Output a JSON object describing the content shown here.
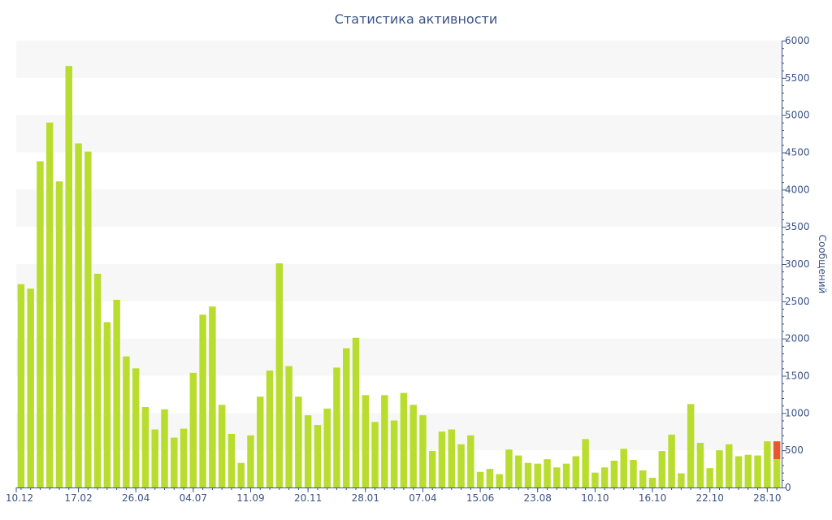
{
  "chart_data": {
    "type": "bar",
    "title": "Статистика активности",
    "ylabel": "Сообщений",
    "ylim": [
      0,
      6000
    ],
    "y_ticks": [
      0,
      500,
      1000,
      1500,
      2000,
      2500,
      3000,
      3500,
      4000,
      4500,
      5000,
      5500,
      6000
    ],
    "x_tick_labels": [
      {
        "index": 0,
        "label": "10.12"
      },
      {
        "index": 6,
        "label": "17.02"
      },
      {
        "index": 12,
        "label": "26.04"
      },
      {
        "index": 18,
        "label": "04.07"
      },
      {
        "index": 24,
        "label": "11.09"
      },
      {
        "index": 30,
        "label": "20.11"
      },
      {
        "index": 36,
        "label": "28.01"
      },
      {
        "index": 42,
        "label": "07.04"
      },
      {
        "index": 48,
        "label": "15.06"
      },
      {
        "index": 54,
        "label": "23.08"
      },
      {
        "index": 60,
        "label": "10.10"
      },
      {
        "index": 66,
        "label": "16.10"
      },
      {
        "index": 72,
        "label": "22.10"
      },
      {
        "index": 78,
        "label": "28.10"
      }
    ],
    "colors": {
      "primary": "#b9dd2e",
      "highlight": "#e8572c"
    },
    "series": [
      {
        "values": [
          2730,
          2670,
          4380,
          4900,
          4110,
          5660,
          4620,
          4510,
          2870,
          2220,
          2520,
          1760,
          1600,
          1080,
          780,
          1050,
          670,
          790,
          1540,
          2320,
          2430,
          1110,
          720,
          330,
          700,
          1220,
          1570,
          3010,
          1630,
          1220,
          970,
          840,
          1060,
          1610,
          1870,
          2010,
          1240,
          880,
          1240,
          900,
          1270,
          1110,
          970,
          490,
          750,
          780,
          580,
          700,
          210,
          250,
          180,
          510,
          430,
          330,
          320,
          380,
          270,
          320,
          420,
          650,
          200,
          270,
          360,
          520,
          370,
          230,
          130,
          490,
          710,
          190,
          1120,
          600,
          260,
          500,
          580,
          420,
          440,
          430,
          620,
          380
        ]
      },
      {
        "values": [
          0,
          0,
          0,
          0,
          0,
          0,
          0,
          0,
          0,
          0,
          0,
          0,
          0,
          0,
          0,
          0,
          0,
          0,
          0,
          0,
          0,
          0,
          0,
          0,
          0,
          0,
          0,
          0,
          0,
          0,
          0,
          0,
          0,
          0,
          0,
          0,
          0,
          0,
          0,
          0,
          0,
          0,
          0,
          0,
          0,
          0,
          0,
          0,
          0,
          0,
          0,
          0,
          0,
          0,
          0,
          0,
          0,
          0,
          0,
          0,
          0,
          0,
          0,
          0,
          0,
          0,
          0,
          0,
          0,
          0,
          0,
          0,
          0,
          0,
          0,
          0,
          0,
          0,
          0,
          240
        ]
      }
    ]
  }
}
